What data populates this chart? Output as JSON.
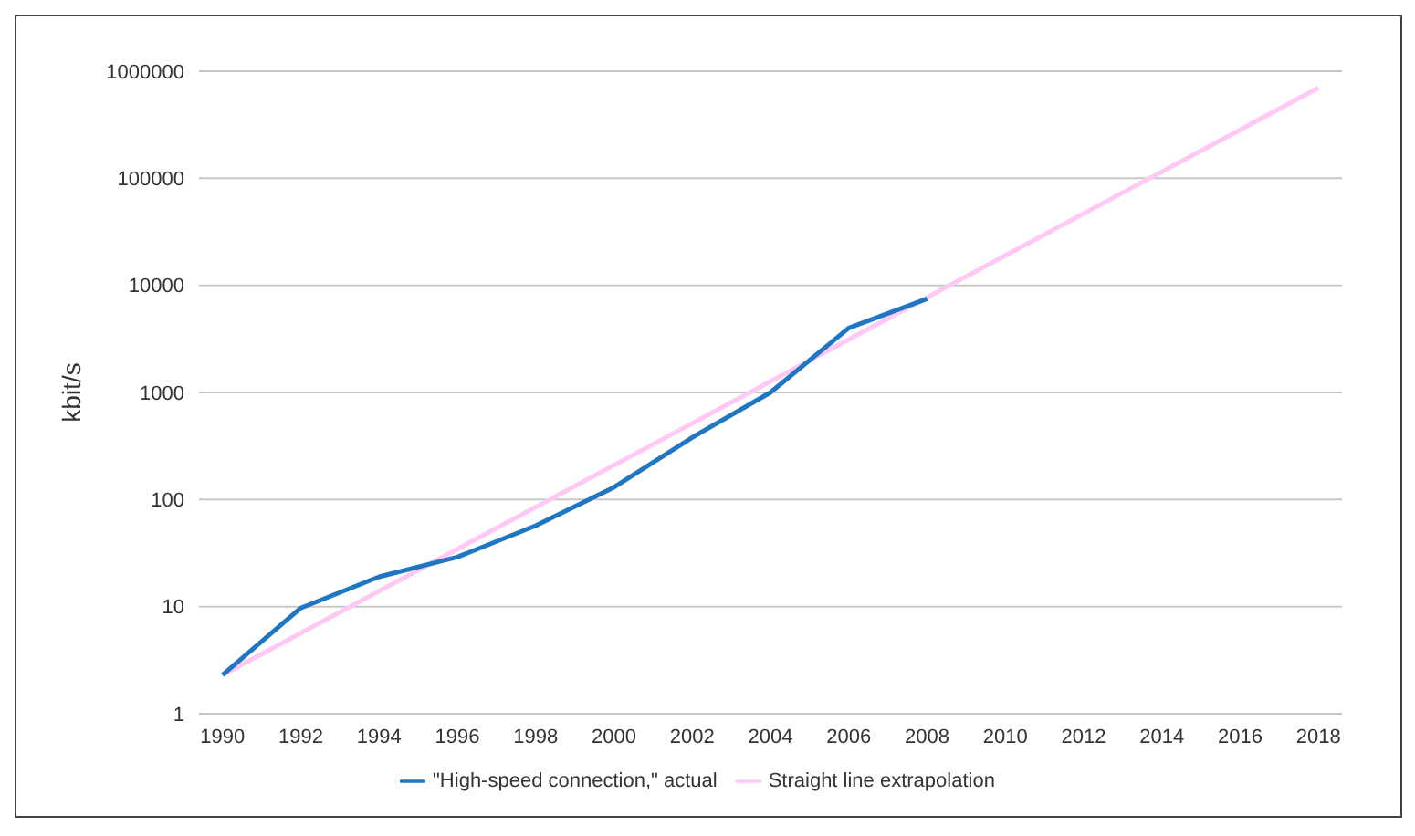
{
  "chart_data": {
    "type": "line",
    "ylabel": "kbit/s",
    "log": "y",
    "grid": "y",
    "legend": "bottom",
    "marker": "none",
    "line_style": "solid",
    "xlim": [
      1989.4,
      2018.6
    ],
    "xticks": [
      1990,
      1992,
      1994,
      1996,
      1998,
      2000,
      2002,
      2004,
      2006,
      2008,
      2010,
      2012,
      2014,
      2016,
      2018
    ],
    "ylim": [
      1,
      1000000
    ],
    "yticks": [
      1,
      10,
      100,
      1000,
      10000,
      100000,
      1000000
    ],
    "series": [
      {
        "name": "Straight line extrapolation",
        "color": "#ffc8f5",
        "x": [
          1990,
          2018
        ],
        "values": [
          2.3,
          700000
        ]
      },
      {
        "name": "\"High-speed connection,\" actual",
        "color": "#1f77c4",
        "x": [
          1990,
          1992,
          1994,
          1996,
          1998,
          2000,
          2002,
          2004,
          2006,
          2008
        ],
        "values": [
          2.3,
          9.7,
          19,
          29,
          57,
          130,
          380,
          1000,
          4000,
          7500
        ]
      }
    ]
  }
}
